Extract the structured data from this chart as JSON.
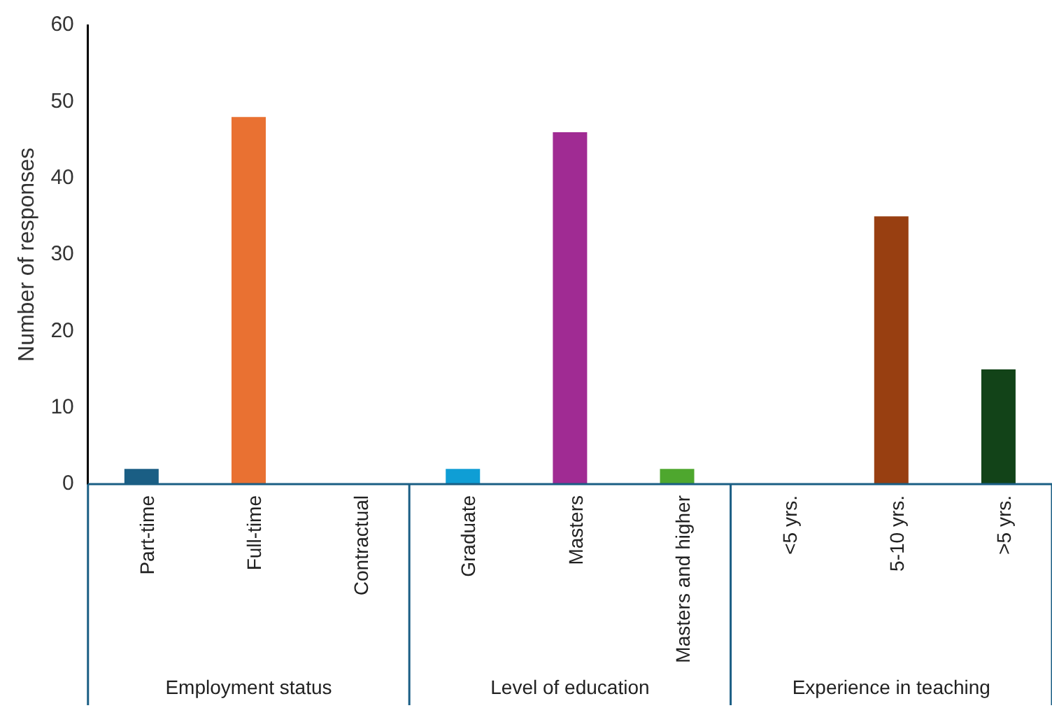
{
  "chart_data": {
    "type": "bar",
    "ylabel": "Number of responses",
    "categories": [
      "Part-time",
      "Full-time",
      "Contractual",
      "Graduate",
      "Masters",
      "Masters and higher",
      "<5 yrs.",
      "5-10 yrs.",
      ">5 yrs."
    ],
    "values": [
      2,
      48,
      0,
      2,
      46,
      2,
      0,
      35,
      15
    ],
    "colors": [
      "#1a5e84",
      "#e97132",
      "#7f7f7f",
      "#0f9ed5",
      "#a02b93",
      "#4ea72e",
      "#7f7f7f",
      "#983f11",
      "#124318"
    ],
    "ylim": [
      0,
      60
    ],
    "yticks": [
      0,
      10,
      20,
      30,
      40,
      50,
      60
    ],
    "grid": false,
    "legend": false,
    "annotations": [
      "Employment status",
      "Level of education",
      "Experience in teaching"
    ]
  }
}
